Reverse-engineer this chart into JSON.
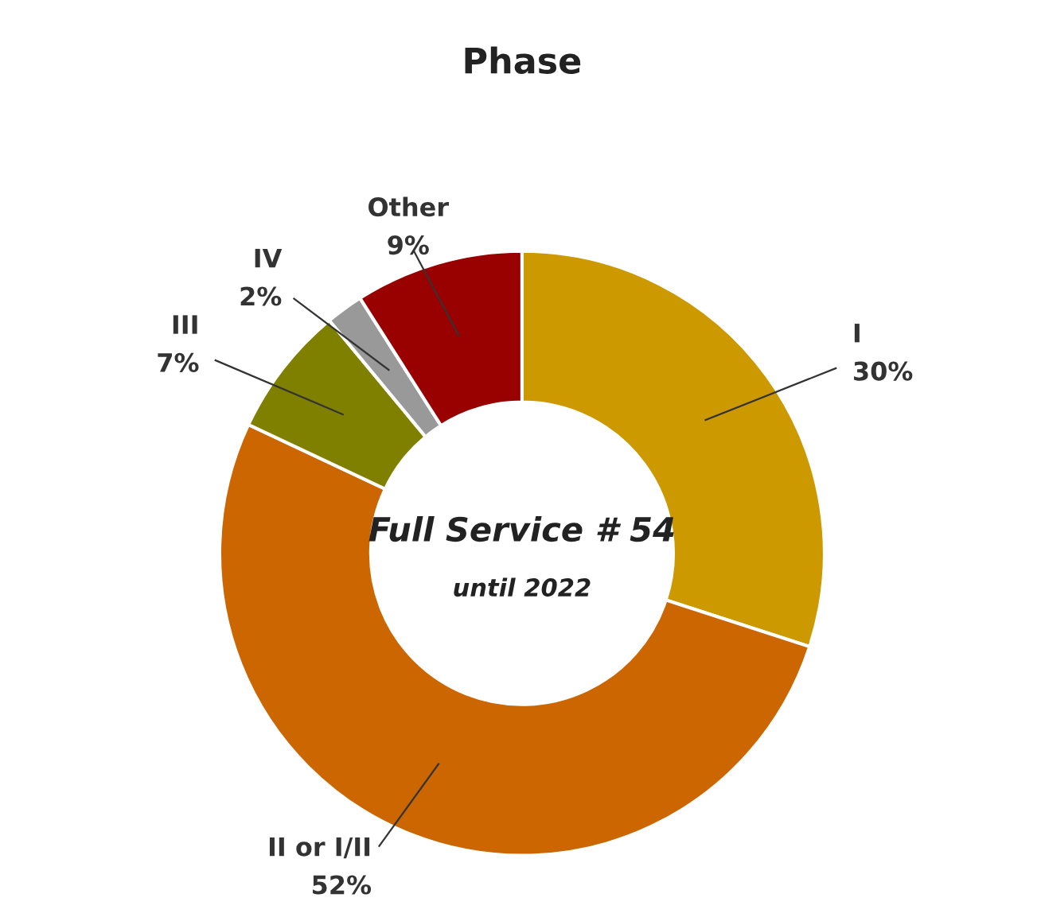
{
  "chart_data": {
    "type": "donut",
    "title": "Phase",
    "categories": [
      "I",
      "II or I/II",
      "III",
      "IV",
      "Other"
    ],
    "values": [
      30,
      52,
      7,
      2,
      9
    ],
    "value_labels": [
      "30%",
      "52%",
      "7%",
      "2%",
      "9%"
    ],
    "colors": [
      "#cc9900",
      "#cc6600",
      "#808000",
      "#999999",
      "#990000"
    ],
    "annotations": [
      "Full Service # 54",
      "until 2022"
    ],
    "legend": false
  }
}
